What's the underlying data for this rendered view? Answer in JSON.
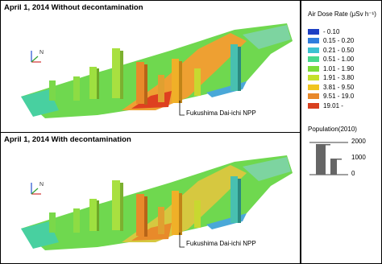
{
  "panels": [
    {
      "title": "April 1, 2014  Without decontamination",
      "annotation": "Fukushima Dai-ichi NPP"
    },
    {
      "title": "April 1, 2014  With decontamination",
      "annotation": "Fukushima Dai-ichi NPP"
    }
  ],
  "legend": {
    "title": "Air Dose Rate (μSv h⁻¹)",
    "items": [
      {
        "label": "- 0.10",
        "color": "#1c3fc4"
      },
      {
        "label": "0.15 - 0.20",
        "color": "#2f7ede"
      },
      {
        "label": "0.21 - 0.50",
        "color": "#3cc2d2"
      },
      {
        "label": "0.51 - 1.00",
        "color": "#48d98e"
      },
      {
        "label": "1.01 - 1.90",
        "color": "#7bdc3a"
      },
      {
        "label": "1.91 - 3.80",
        "color": "#c4e02c"
      },
      {
        "label": "3.81 - 9.50",
        "color": "#f0c51e"
      },
      {
        "label": "9.51 - 19.0",
        "color": "#e8882a"
      },
      {
        "label": "19.01 -",
        "color": "#d8401f"
      }
    ]
  },
  "population": {
    "title": "Population(2010)",
    "scale_labels": [
      "2000",
      "1000",
      "0"
    ]
  }
}
